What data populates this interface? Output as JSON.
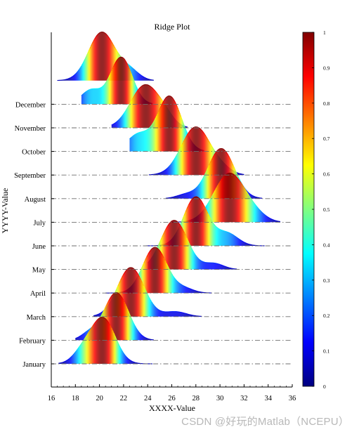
{
  "chart_data": {
    "type": "ridgeline",
    "title": "Ridge Plot",
    "xlabel": "XXXX-Value",
    "ylabel": "YYYY-Value",
    "xlim": [
      16,
      36
    ],
    "xticks": [
      16,
      18,
      20,
      22,
      24,
      26,
      28,
      30,
      32,
      34,
      36
    ],
    "colorbar": {
      "colormap": "jet",
      "range": [
        0,
        1
      ],
      "ticks": [
        "0",
        "0.1",
        "0.2",
        "0.3",
        "0.4",
        "0.5",
        "0.6",
        "0.7",
        "0.8",
        "0.9",
        "1"
      ]
    },
    "series": [
      {
        "name": "January",
        "components": [
          {
            "mu": 20.3,
            "sigma": 1.0,
            "w": 1.0
          },
          {
            "mu": 18.6,
            "sigma": 0.8,
            "w": 0.25
          }
        ],
        "range": [
          16.6,
          24.4
        ],
        "height": 0.95
      },
      {
        "name": "February",
        "components": [
          {
            "mu": 21.4,
            "sigma": 1.0,
            "w": 1.0
          },
          {
            "mu": 19.2,
            "sigma": 0.7,
            "w": 0.15
          }
        ],
        "range": [
          18.0,
          24.5
        ],
        "height": 0.97
      },
      {
        "name": "March",
        "components": [
          {
            "mu": 22.6,
            "sigma": 1.1,
            "w": 1.0
          },
          {
            "mu": 26.3,
            "sigma": 0.9,
            "w": 0.1
          }
        ],
        "range": [
          19.5,
          28.5
        ],
        "height": 1.0
      },
      {
        "name": "April",
        "components": [
          {
            "mu": 24.6,
            "sigma": 1.0,
            "w": 1.0
          },
          {
            "mu": 27.0,
            "sigma": 0.8,
            "w": 0.1
          }
        ],
        "range": [
          20.5,
          29.3
        ],
        "height": 0.93
      },
      {
        "name": "May",
        "components": [
          {
            "mu": 26.2,
            "sigma": 1.1,
            "w": 1.0
          },
          {
            "mu": 29.5,
            "sigma": 0.8,
            "w": 0.12
          }
        ],
        "range": [
          24.0,
          31.4
        ],
        "height": 1.0
      },
      {
        "name": "June",
        "components": [
          {
            "mu": 28.0,
            "sigma": 1.0,
            "w": 1.0
          },
          {
            "mu": 30.6,
            "sigma": 0.9,
            "w": 0.25
          }
        ],
        "range": [
          23.8,
          33.7
        ],
        "height": 1.0
      },
      {
        "name": "July",
        "components": [
          {
            "mu": 30.8,
            "sigma": 1.3,
            "w": 1.0
          },
          {
            "mu": 33.0,
            "sigma": 0.9,
            "w": 0.1
          }
        ],
        "range": [
          26.0,
          35.0
        ],
        "height": 1.0
      },
      {
        "name": "August",
        "components": [
          {
            "mu": 30.1,
            "sigma": 1.1,
            "w": 1.0
          },
          {
            "mu": 27.2,
            "sigma": 0.8,
            "w": 0.08
          }
        ],
        "range": [
          25.5,
          33.5
        ],
        "height": 1.02
      },
      {
        "name": "September",
        "components": [
          {
            "mu": 28.0,
            "sigma": 1.2,
            "w": 1.0
          },
          {
            "mu": 30.2,
            "sigma": 0.8,
            "w": 0.1
          }
        ],
        "range": [
          24.1,
          32.0
        ],
        "height": 0.98
      },
      {
        "name": "October",
        "components": [
          {
            "mu": 25.8,
            "sigma": 1.0,
            "w": 1.0
          },
          {
            "mu": 23.2,
            "sigma": 0.9,
            "w": 0.3
          }
        ],
        "range": [
          22.5,
          28.7
        ],
        "height": 1.13
      },
      {
        "name": "November",
        "components": [
          {
            "mu": 23.8,
            "sigma": 1.2,
            "w": 1.0
          },
          {
            "mu": 25.5,
            "sigma": 0.7,
            "w": 0.15
          }
        ],
        "range": [
          21.0,
          27.3
        ],
        "height": 0.88
      },
      {
        "name": "December",
        "components": [
          {
            "mu": 21.8,
            "sigma": 0.9,
            "w": 1.0
          },
          {
            "mu": 19.3,
            "sigma": 0.8,
            "w": 0.3
          }
        ],
        "range": [
          18.5,
          24.4
        ],
        "height": 0.96
      },
      {
        "name": "",
        "components": [
          {
            "mu": 20.2,
            "sigma": 1.1,
            "w": 1.0
          },
          {
            "mu": 22.5,
            "sigma": 0.8,
            "w": 0.2
          }
        ],
        "range": [
          16.5,
          24.5
        ],
        "height": 0.99
      }
    ]
  },
  "watermark": "CSDN @好玩的Matlab（NCEPU）"
}
